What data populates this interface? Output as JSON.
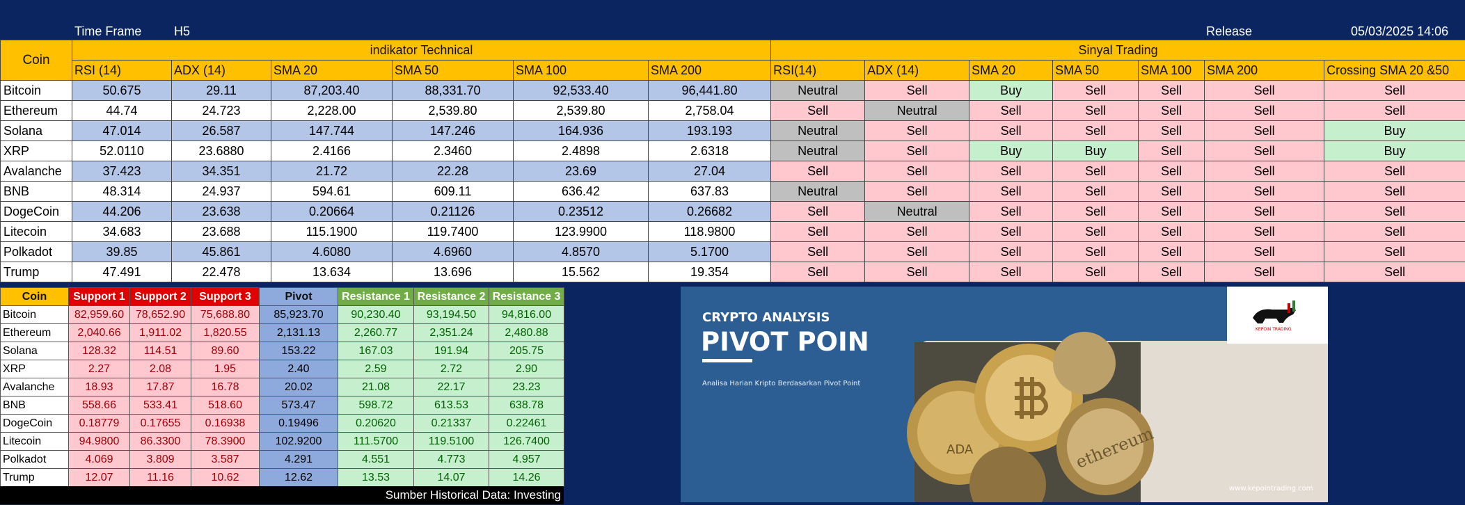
{
  "header": {
    "time_frame_label": "Time Frame",
    "time_frame_value": "H5",
    "release_label": "Release",
    "release_value": "05/03/2025 14:06"
  },
  "top_table": {
    "coin_header": "Coin",
    "indicator_group": "indikator Technical",
    "signal_group": "Sinyal Trading",
    "indicator_columns": [
      "RSI (14)",
      "ADX (14)",
      "SMA 20",
      "SMA 50",
      "SMA 100",
      "SMA 200"
    ],
    "signal_columns": [
      "RSI(14)",
      "ADX (14)",
      "SMA 20",
      "SMA 50",
      "SMA 100",
      "SMA 200",
      "Crossing SMA 20 &50"
    ],
    "rows": [
      {
        "coin": "Bitcoin",
        "ind": [
          "50.675",
          "29.11",
          "87,203.40",
          "88,331.70",
          "92,533.40",
          "96,441.80"
        ],
        "sig": [
          "Neutral",
          "Sell",
          "Buy",
          "Sell",
          "Sell",
          "Sell",
          "Sell"
        ]
      },
      {
        "coin": "Ethereum",
        "ind": [
          "44.74",
          "24.723",
          "2,228.00",
          "2,539.80",
          "2,539.80",
          "2,758.04"
        ],
        "sig": [
          "Sell",
          "Neutral",
          "Sell",
          "Sell",
          "Sell",
          "Sell",
          "Sell"
        ]
      },
      {
        "coin": "Solana",
        "ind": [
          "47.014",
          "26.587",
          "147.744",
          "147.246",
          "164.936",
          "193.193"
        ],
        "sig": [
          "Neutral",
          "Sell",
          "Sell",
          "Sell",
          "Sell",
          "Sell",
          "Buy"
        ]
      },
      {
        "coin": "XRP",
        "ind": [
          "52.0110",
          "23.6880",
          "2.4166",
          "2.3460",
          "2.4898",
          "2.6318"
        ],
        "sig": [
          "Neutral",
          "Sell",
          "Buy",
          "Buy",
          "Sell",
          "Sell",
          "Buy"
        ]
      },
      {
        "coin": "Avalanche",
        "ind": [
          "37.423",
          "34.351",
          "21.72",
          "22.28",
          "23.69",
          "27.04"
        ],
        "sig": [
          "Sell",
          "Sell",
          "Sell",
          "Sell",
          "Sell",
          "Sell",
          "Sell"
        ]
      },
      {
        "coin": "BNB",
        "ind": [
          "48.314",
          "24.937",
          "594.61",
          "609.11",
          "636.42",
          "637.83"
        ],
        "sig": [
          "Neutral",
          "Sell",
          "Sell",
          "Sell",
          "Sell",
          "Sell",
          "Sell"
        ]
      },
      {
        "coin": "DogeCoin",
        "ind": [
          "44.206",
          "23.638",
          "0.20664",
          "0.21126",
          "0.23512",
          "0.26682"
        ],
        "sig": [
          "Sell",
          "Neutral",
          "Sell",
          "Sell",
          "Sell",
          "Sell",
          "Sell"
        ]
      },
      {
        "coin": "Litecoin",
        "ind": [
          "34.683",
          "23.688",
          "115.1900",
          "119.7400",
          "123.9900",
          "118.9800"
        ],
        "sig": [
          "Sell",
          "Sell",
          "Sell",
          "Sell",
          "Sell",
          "Sell",
          "Sell"
        ]
      },
      {
        "coin": "Polkadot",
        "ind": [
          "39.85",
          "45.861",
          "4.6080",
          "4.6960",
          "4.8570",
          "5.1700"
        ],
        "sig": [
          "Sell",
          "Sell",
          "Sell",
          "Sell",
          "Sell",
          "Sell",
          "Sell"
        ]
      },
      {
        "coin": "Trump",
        "ind": [
          "47.491",
          "22.478",
          "13.634",
          "13.696",
          "15.562",
          "19.354"
        ],
        "sig": [
          "Sell",
          "Sell",
          "Sell",
          "Sell",
          "Sell",
          "Sell",
          "Sell"
        ]
      }
    ]
  },
  "pivot_table": {
    "headers": [
      "Coin",
      "Support 1",
      "Support 2",
      "Support 3",
      "Pivot",
      "Resistance 1",
      "Resistance 2",
      "Resistance 3"
    ],
    "rows": [
      {
        "coin": "Bitcoin",
        "s1": "82,959.60",
        "s2": "78,652.90",
        "s3": "75,688.80",
        "p": "85,923.70",
        "r1": "90,230.40",
        "r2": "93,194.50",
        "r3": "94,816.00"
      },
      {
        "coin": "Ethereum",
        "s1": "2,040.66",
        "s2": "1,911.02",
        "s3": "1,820.55",
        "p": "2,131.13",
        "r1": "2,260.77",
        "r2": "2,351.24",
        "r3": "2,480.88"
      },
      {
        "coin": "Solana",
        "s1": "128.32",
        "s2": "114.51",
        "s3": "89.60",
        "p": "153.22",
        "r1": "167.03",
        "r2": "191.94",
        "r3": "205.75"
      },
      {
        "coin": "XRP",
        "s1": "2.27",
        "s2": "2.08",
        "s3": "1.95",
        "p": "2.40",
        "r1": "2.59",
        "r2": "2.72",
        "r3": "2.90"
      },
      {
        "coin": "Avalanche",
        "s1": "18.93",
        "s2": "17.87",
        "s3": "16.78",
        "p": "20.02",
        "r1": "21.08",
        "r2": "22.17",
        "r3": "23.23"
      },
      {
        "coin": "BNB",
        "s1": "558.66",
        "s2": "533.41",
        "s3": "518.60",
        "p": "573.47",
        "r1": "598.72",
        "r2": "613.53",
        "r3": "638.78"
      },
      {
        "coin": "DogeCoin",
        "s1": "0.18779",
        "s2": "0.17655",
        "s3": "0.16938",
        "p": "0.19496",
        "r1": "0.20620",
        "r2": "0.21337",
        "r3": "0.22461"
      },
      {
        "coin": "Litecoin",
        "s1": "94.9800",
        "s2": "86.3300",
        "s3": "78.3900",
        "p": "102.9200",
        "r1": "111.5700",
        "r2": "119.5100",
        "r3": "126.7400"
      },
      {
        "coin": "Polkadot",
        "s1": "4.069",
        "s2": "3.809",
        "s3": "3.587",
        "p": "4.291",
        "r1": "4.551",
        "r2": "4.773",
        "r3": "4.957"
      },
      {
        "coin": "Trump",
        "s1": "12.07",
        "s2": "11.16",
        "s3": "10.62",
        "p": "12.62",
        "r1": "13.53",
        "r2": "14.07",
        "r3": "14.26"
      }
    ],
    "footer": "Sumber Historical Data: Investing"
  },
  "banner": {
    "kicker": "CRYPTO ANALYSIS",
    "title": "PIVOT POIN",
    "subtitle": "Analisa Harian Kripto Berdasarkan Pivot Point",
    "website": "www.kepointrading.com",
    "logo_text": "KEPOIN TRADING",
    "coin_ada": "ADA",
    "coin_eth": "ethereum",
    "colors": {
      "blue": "#2c5e93",
      "beige": "#e3dcd2"
    }
  },
  "colors": {
    "page_bg": "#0b2560",
    "header_yellow": "#ffc000",
    "row_blue": "#b4c6e7",
    "sell": "#ffc7ce",
    "buy": "#c6efce",
    "neutral": "#bfbfbf",
    "support_head": "#e00000",
    "pivot": "#8ea9db",
    "resistance_head": "#70ad47"
  }
}
